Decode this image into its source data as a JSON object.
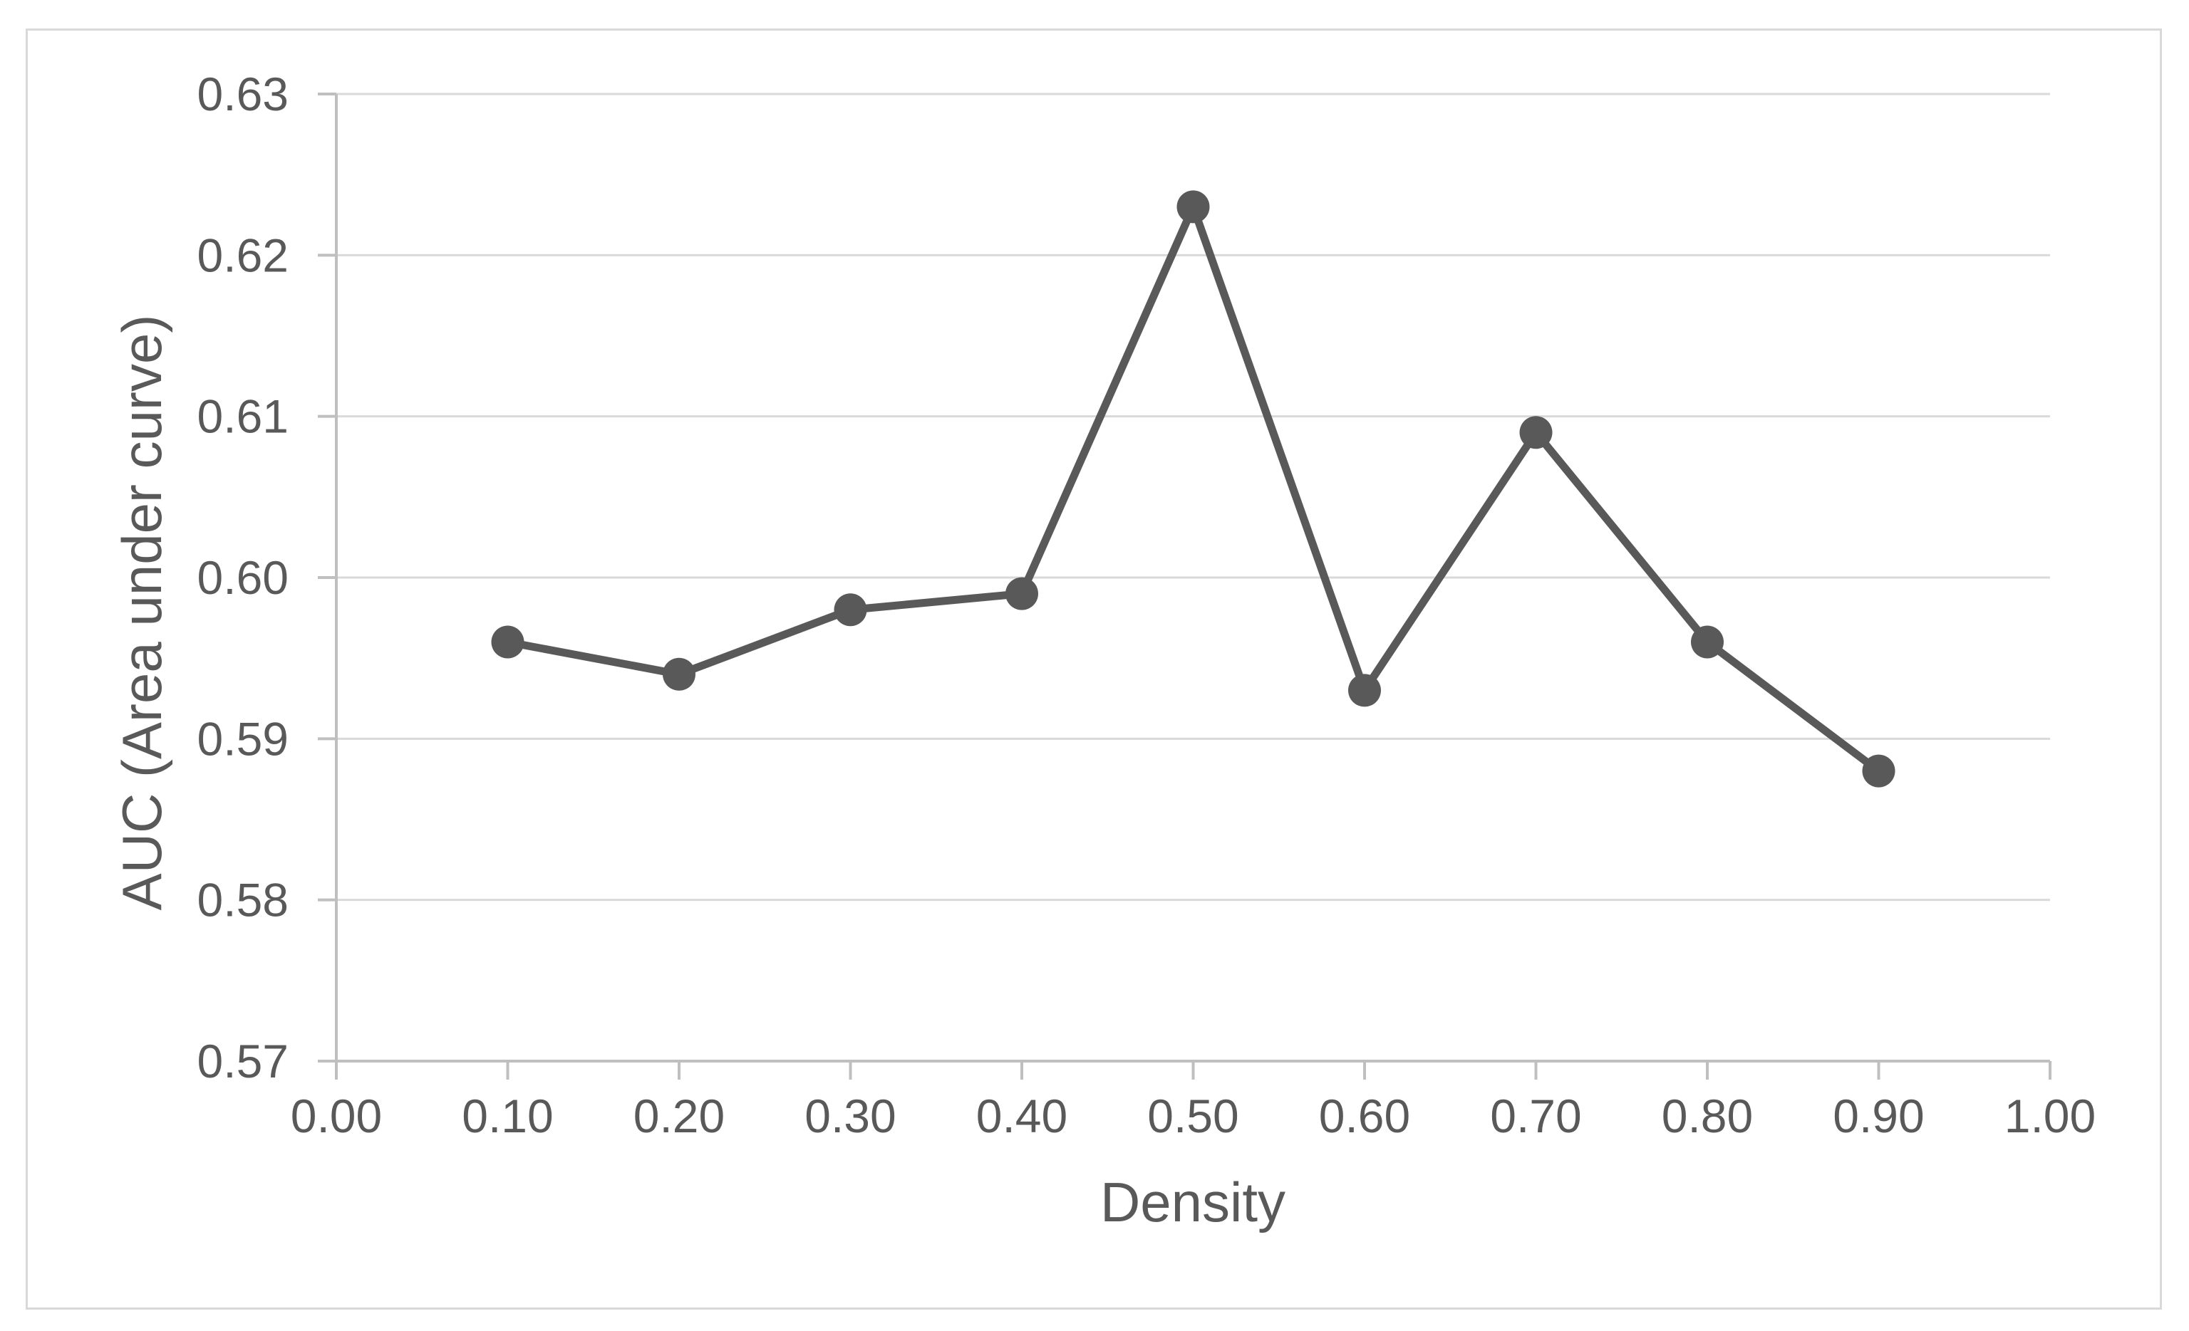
{
  "chart_data": {
    "type": "line",
    "title": "",
    "xlabel": "Density",
    "ylabel": "AUC (Area under curve)",
    "x": [
      0.1,
      0.2,
      0.3,
      0.4,
      0.5,
      0.6,
      0.7,
      0.8,
      0.9
    ],
    "y": [
      0.596,
      0.594,
      0.598,
      0.599,
      0.623,
      0.593,
      0.609,
      0.596,
      0.588
    ],
    "xlim": [
      0.0,
      1.0
    ],
    "ylim": [
      0.57,
      0.63
    ],
    "xticks": [
      0.0,
      0.1,
      0.2,
      0.3,
      0.4,
      0.5,
      0.6,
      0.7,
      0.8,
      0.9,
      1.0
    ],
    "xtick_labels": [
      "0.00",
      "0.10",
      "0.20",
      "0.30",
      "0.40",
      "0.50",
      "0.60",
      "0.70",
      "0.80",
      "0.90",
      "1.00"
    ],
    "yticks": [
      0.57,
      0.58,
      0.59,
      0.6,
      0.61,
      0.62,
      0.63
    ],
    "ytick_labels": [
      "0.57",
      "0.58",
      "0.59",
      "0.60",
      "0.61",
      "0.62",
      "0.63"
    ],
    "grid": "horizontal",
    "legend": "none",
    "marker": "circle",
    "colors": {
      "series": "#595959",
      "gridline": "#d9d9d9",
      "axis": "#bfbfbf",
      "text": "#595959",
      "background": "#ffffff",
      "border": "#d9d9d9"
    }
  }
}
